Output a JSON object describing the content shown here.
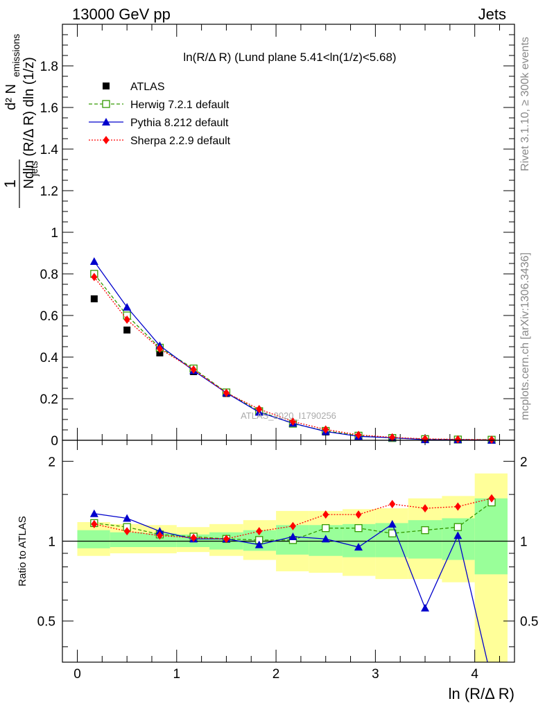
{
  "header": {
    "left": "13000 GeV pp",
    "right": "Jets"
  },
  "side_labels": {
    "rivet": "Rivet 3.1.10, ≥ 300k events",
    "mcplots": "mcplots.cern.ch [arXiv:1306.3436]"
  },
  "watermark": "ATLAS_2020_I1790256",
  "colors": {
    "atlas": "#000000",
    "herwig": "#339900",
    "pythia": "#0000cc",
    "sherpa": "#ff0000",
    "band_yellow": "#ffff99",
    "band_green": "#99ff99"
  },
  "chart_data": [
    {
      "type": "scatter",
      "title": "ln(R/Δ R) (Lund plane 5.41<ln(1/z)<5.68)",
      "ylabel": "1 / N_jets dln (R/Δ R) dln (1/z) d² N_emissions",
      "xlim": [
        -0.15,
        4.4
      ],
      "ylim": [
        0,
        2.0
      ],
      "y_ticks": [
        0,
        0.2,
        0.4,
        0.6,
        0.8,
        1,
        1.2,
        1.4,
        1.6,
        1.8
      ],
      "y_tick_labels": [
        "0",
        "0.2",
        "0.4",
        "0.6",
        "0.8",
        "1",
        "1.2",
        "1.4",
        "1.6",
        "1.8"
      ],
      "legend_position": "top-left",
      "x": [
        0.17,
        0.5,
        0.83,
        1.17,
        1.5,
        1.83,
        2.17,
        2.5,
        2.83,
        3.17,
        3.5,
        3.83,
        4.17
      ],
      "series": [
        {
          "name": "ATLAS",
          "marker": "square",
          "values": [
            0.68,
            0.53,
            0.42,
            0.33,
            0.225,
            0.14,
            0.08,
            0.04,
            0.02,
            0.01,
            0.005,
            0.003,
            0.002
          ]
        },
        {
          "name": "Herwig 7.2.1 default",
          "marker": "open-square",
          "line": "dashed",
          "values": [
            0.8,
            0.6,
            0.445,
            0.345,
            0.23,
            0.14,
            0.08,
            0.045,
            0.022,
            0.011,
            0.0055,
            0.0035,
            0.0025
          ]
        },
        {
          "name": "Pythia 8.212 default",
          "marker": "triangle",
          "line": "solid",
          "values": [
            0.86,
            0.64,
            0.455,
            0.335,
            0.228,
            0.135,
            0.082,
            0.042,
            0.019,
            0.012,
            0.003,
            0.003,
            0.0006
          ]
        },
        {
          "name": "Sherpa 2.2.9 default",
          "marker": "diamond",
          "line": "dotted",
          "values": [
            0.785,
            0.58,
            0.44,
            0.34,
            0.228,
            0.15,
            0.09,
            0.052,
            0.026,
            0.014,
            0.007,
            0.0045,
            0.003
          ]
        }
      ]
    },
    {
      "type": "line",
      "ylabel": "Ratio to ATLAS",
      "xlabel": "ln (R/Δ R)",
      "xlim": [
        -0.15,
        4.4
      ],
      "ylim": [
        0.35,
        2.4
      ],
      "y_scale": "log",
      "y_ticks": [
        0.5,
        1,
        2
      ],
      "y_tick_labels": [
        "0.5",
        "1",
        "2"
      ],
      "x_ticks": [
        0,
        1,
        2,
        3,
        4
      ],
      "x_tick_labels": [
        "0",
        "1",
        "2",
        "3",
        "4"
      ],
      "x_edges": [
        0.0,
        0.33,
        0.67,
        1.0,
        1.33,
        1.67,
        2.0,
        2.33,
        2.67,
        3.0,
        3.33,
        3.67,
        4.0,
        4.33
      ],
      "band_outer": [
        [
          0.88,
          1.18
        ],
        [
          0.9,
          1.16
        ],
        [
          0.9,
          1.15
        ],
        [
          0.91,
          1.13
        ],
        [
          0.88,
          1.16
        ],
        [
          0.85,
          1.2
        ],
        [
          0.77,
          1.3
        ],
        [
          0.76,
          1.3
        ],
        [
          0.74,
          1.32
        ],
        [
          0.72,
          1.33
        ],
        [
          0.72,
          1.45
        ],
        [
          0.7,
          1.48
        ],
        [
          0.2,
          1.8
        ]
      ],
      "band_inner": [
        [
          0.94,
          1.1
        ],
        [
          0.95,
          1.08
        ],
        [
          0.95,
          1.07
        ],
        [
          0.95,
          1.06
        ],
        [
          0.93,
          1.08
        ],
        [
          0.92,
          1.1
        ],
        [
          0.89,
          1.15
        ],
        [
          0.88,
          1.15
        ],
        [
          0.87,
          1.16
        ],
        [
          0.87,
          1.17
        ],
        [
          0.86,
          1.2
        ],
        [
          0.85,
          1.22
        ],
        [
          0.75,
          1.45
        ]
      ],
      "x": [
        0.17,
        0.5,
        0.83,
        1.17,
        1.5,
        1.83,
        2.17,
        2.5,
        2.83,
        3.17,
        3.5,
        3.83,
        4.17
      ],
      "series": [
        {
          "name": "Herwig 7.2.1 default",
          "values": [
            1.17,
            1.13,
            1.06,
            1.04,
            1.02,
            1.01,
            1.01,
            1.12,
            1.12,
            1.07,
            1.1,
            1.13,
            1.4
          ]
        },
        {
          "name": "Pythia 8.212 default",
          "values": [
            1.27,
            1.22,
            1.09,
            1.02,
            1.02,
            0.97,
            1.04,
            1.02,
            0.95,
            1.16,
            0.56,
            1.05,
            0.3
          ]
        },
        {
          "name": "Sherpa 2.2.9 default",
          "values": [
            1.16,
            1.09,
            1.05,
            1.03,
            1.02,
            1.09,
            1.14,
            1.26,
            1.26,
            1.38,
            1.33,
            1.35,
            1.45
          ]
        }
      ]
    }
  ]
}
